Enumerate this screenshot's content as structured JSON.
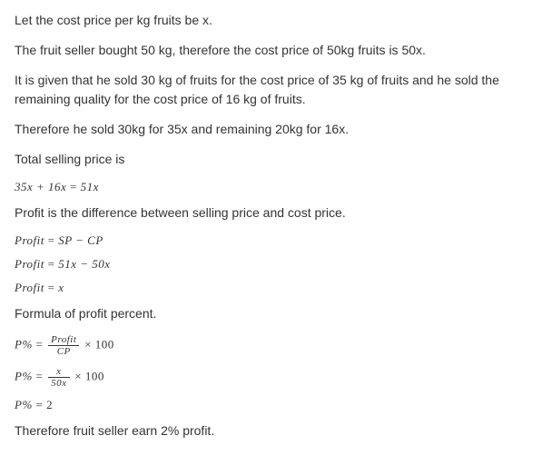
{
  "lines": {
    "l1": "Let the cost price per kg fruits be x.",
    "l2": "The fruit seller bought 50 kg, therefore the cost price of 50kg fruits is 50x.",
    "l3": "It is given that he sold 30 kg of fruits for the cost price of 35 kg of fruits and he sold the remaining quality for the cost price of 16 kg of fruits.",
    "l4": "Therefore he sold 30kg for 35x and remaining 20kg for 16x.",
    "l5": "Total selling price is",
    "m1_lhs": "35x + 16x",
    "m1_rhs": "51x",
    "l6": "Profit is the difference between selling price and cost price.",
    "m2_lhs": "Profit",
    "m2_rhs": "SP − CP",
    "m3_lhs": "Profit",
    "m3_rhs": "51x − 50x",
    "m4_lhs": "Profit",
    "m4_rhs": "x",
    "l7": "Formula of profit percent.",
    "m5_lhs": "P%",
    "m5_frac_num": "Profit",
    "m5_frac_den": "CP",
    "m5_mult": " × 100",
    "m6_lhs": "P%",
    "m6_frac_num": "x",
    "m6_frac_den": "50x",
    "m6_mult": " × 100",
    "m7_lhs": "P%",
    "m7_rhs": "2",
    "l8": "Therefore fruit seller earn 2% profit.",
    "eq": " = "
  },
  "colors": {
    "text": "#333333",
    "background": "#ffffff"
  },
  "fonts": {
    "body_size": 14,
    "math_size": 13,
    "frac_size": 11
  }
}
